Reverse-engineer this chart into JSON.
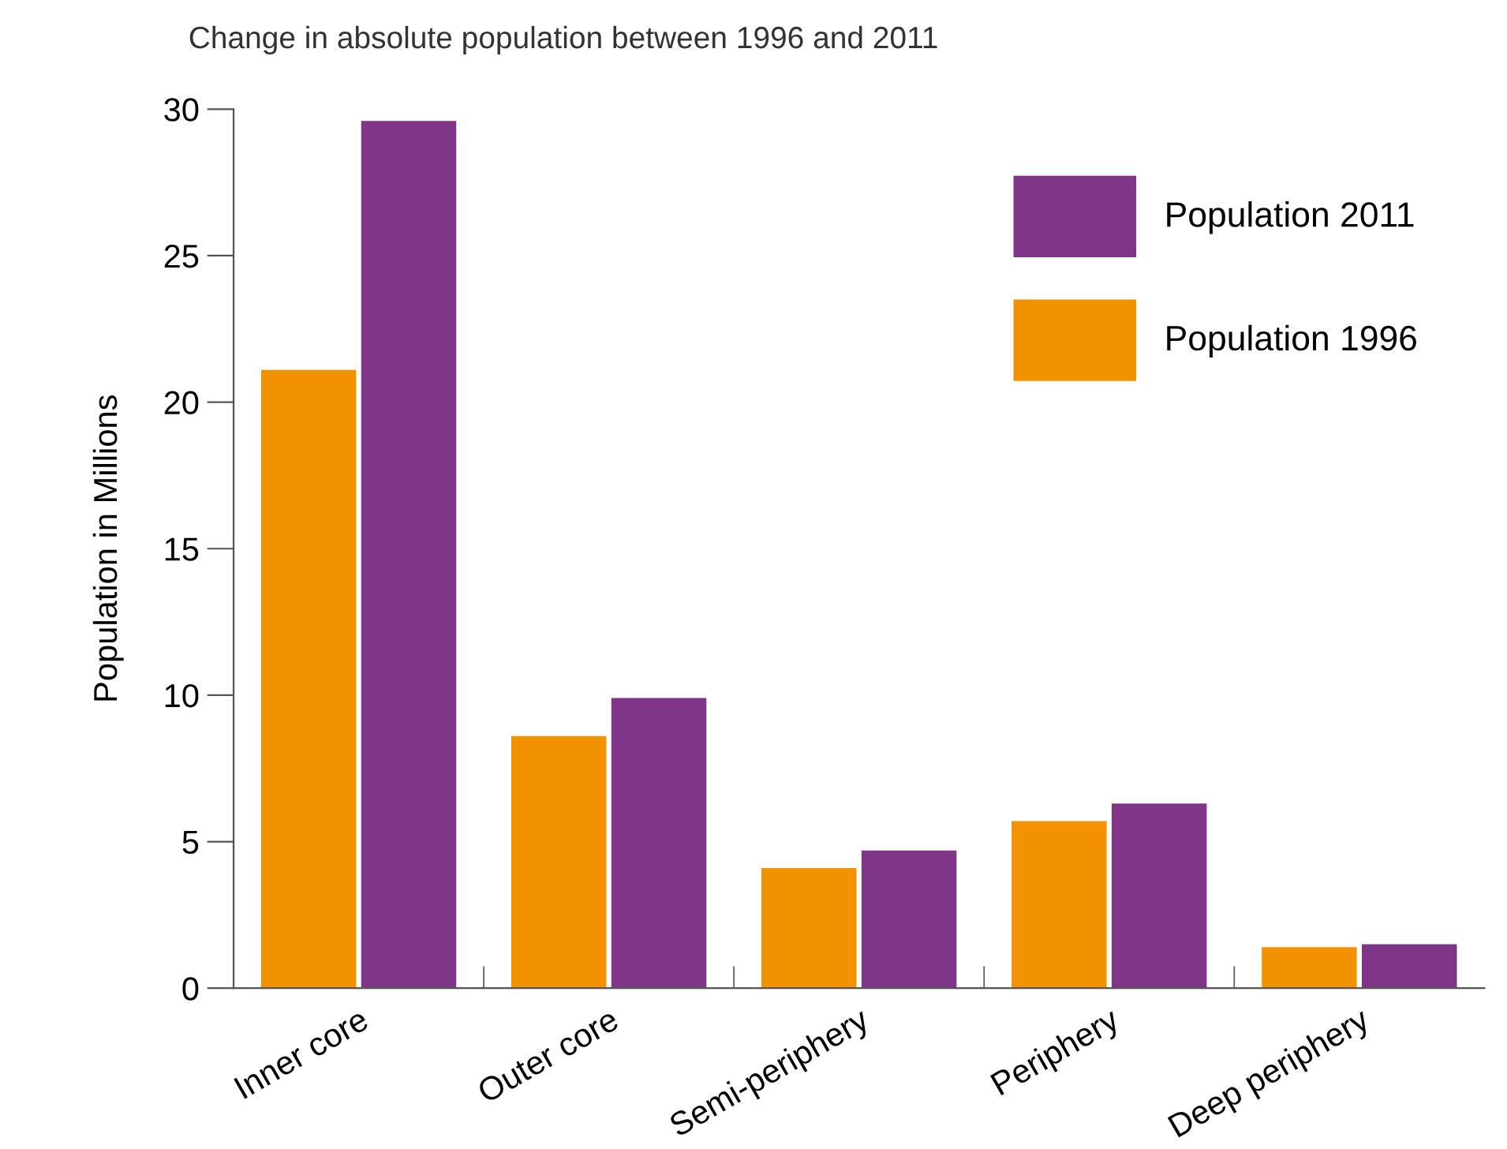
{
  "chart_data": {
    "type": "bar",
    "title": "Change in absolute population between 1996 and 2011",
    "ylabel": "Population in Millions",
    "categories": [
      "Inner core",
      "Outer core",
      "Semi-periphery",
      "Periphery",
      "Deep periphery"
    ],
    "series": [
      {
        "name": "Population 1996",
        "color": "#f39200",
        "values": [
          21.1,
          8.6,
          4.1,
          5.7,
          1.4
        ]
      },
      {
        "name": "Population 2011",
        "color": "#7f3588",
        "values": [
          29.6,
          9.9,
          4.7,
          6.3,
          1.5
        ]
      }
    ],
    "ylim": [
      0,
      30
    ],
    "yticks": [
      0,
      5,
      10,
      15,
      20,
      25,
      30
    ],
    "grid": false,
    "legend": "top right"
  }
}
